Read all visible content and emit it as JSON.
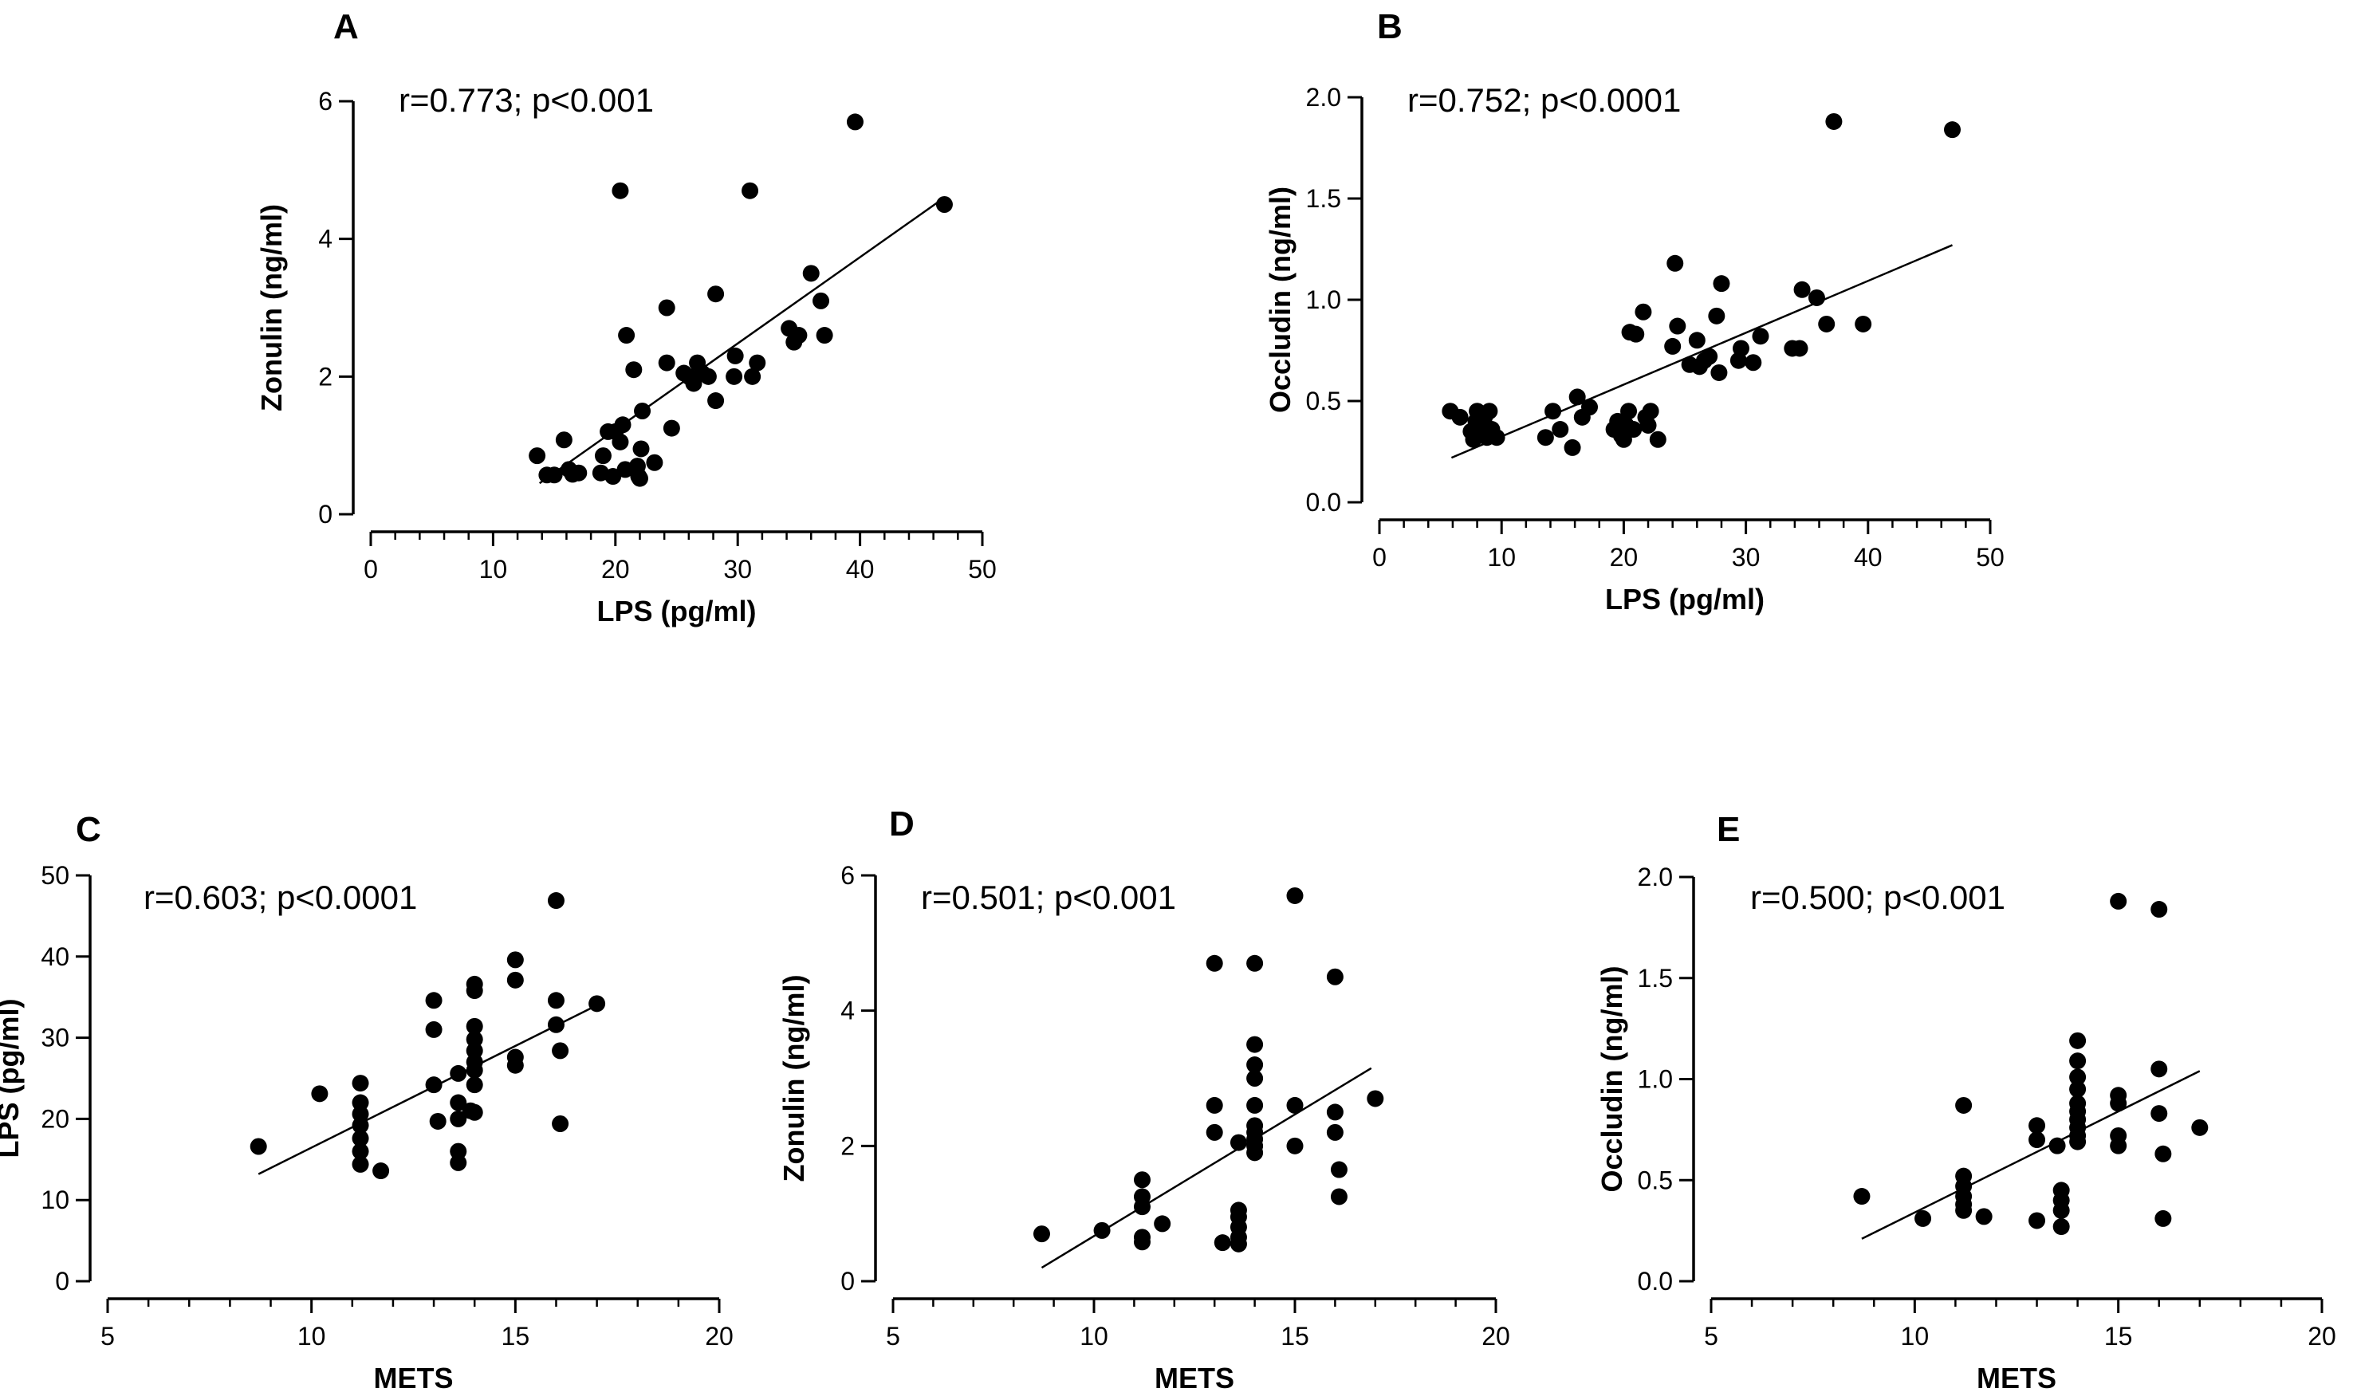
{
  "chart_data": [
    {
      "id": "A",
      "type": "scatter",
      "panel_label": "A",
      "annotation": "r=0.773; p<0.001",
      "xlabel": "LPS (pg/ml)",
      "ylabel": "Zonulin (ng/ml)",
      "xlim": [
        0,
        50
      ],
      "ylim": [
        0,
        6
      ],
      "x_ticks": [
        0,
        10,
        20,
        30,
        40,
        50
      ],
      "y_ticks": [
        0,
        2,
        4,
        6
      ],
      "x_tick_labels": [
        "0",
        "10",
        "20",
        "30",
        "40",
        "50"
      ],
      "y_tick_labels": [
        "0",
        "2",
        "4",
        "6"
      ],
      "fit_line": [
        [
          13.8,
          0.45
        ],
        [
          46.9,
          4.6
        ]
      ],
      "points": [
        [
          13.6,
          0.85
        ],
        [
          14.4,
          0.57
        ],
        [
          15.0,
          0.57
        ],
        [
          15.8,
          1.08
        ],
        [
          16.2,
          0.65
        ],
        [
          16.5,
          0.58
        ],
        [
          17.0,
          0.6
        ],
        [
          18.8,
          0.6
        ],
        [
          19.0,
          0.85
        ],
        [
          19.4,
          1.2
        ],
        [
          19.8,
          0.55
        ],
        [
          20.0,
          1.2
        ],
        [
          20.4,
          1.05
        ],
        [
          20.6,
          1.3
        ],
        [
          20.8,
          0.65
        ],
        [
          20.4,
          4.7
        ],
        [
          20.9,
          2.6
        ],
        [
          21.5,
          2.1
        ],
        [
          21.8,
          0.7
        ],
        [
          21.9,
          0.55
        ],
        [
          22.0,
          0.52
        ],
        [
          22.1,
          0.95
        ],
        [
          22.2,
          1.5
        ],
        [
          23.2,
          0.75
        ],
        [
          24.2,
          2.2
        ],
        [
          24.2,
          3.0
        ],
        [
          24.6,
          1.25
        ],
        [
          25.6,
          2.05
        ],
        [
          26.0,
          2.0
        ],
        [
          26.4,
          1.9
        ],
        [
          26.7,
          2.2
        ],
        [
          27.1,
          2.05
        ],
        [
          27.6,
          2.0
        ],
        [
          28.2,
          1.65
        ],
        [
          28.2,
          3.2
        ],
        [
          29.7,
          2.0
        ],
        [
          29.8,
          2.3
        ],
        [
          31.0,
          4.7
        ],
        [
          31.2,
          2.0
        ],
        [
          31.6,
          2.2
        ],
        [
          34.2,
          2.7
        ],
        [
          34.6,
          2.5
        ],
        [
          35.0,
          2.6
        ],
        [
          36.0,
          3.5
        ],
        [
          36.8,
          3.1
        ],
        [
          37.1,
          2.6
        ],
        [
          39.6,
          5.7
        ],
        [
          46.9,
          4.5
        ]
      ]
    },
    {
      "id": "B",
      "type": "scatter",
      "panel_label": "B",
      "annotation": "r=0.752; p<0.0001",
      "xlabel": "LPS (pg/ml)",
      "ylabel": "Occludin (ng/ml)",
      "xlim": [
        0,
        50
      ],
      "ylim": [
        0,
        2.0
      ],
      "x_ticks": [
        0,
        10,
        20,
        30,
        40,
        50
      ],
      "y_ticks": [
        0,
        0.5,
        1.0,
        1.5,
        2.0
      ],
      "x_tick_labels": [
        "0",
        "10",
        "20",
        "30",
        "40",
        "50"
      ],
      "y_tick_labels": [
        "0.0",
        "0.5",
        "1.0",
        "1.5",
        "2.0"
      ],
      "fit_line": [
        [
          5.9,
          0.22
        ],
        [
          46.9,
          1.27
        ]
      ],
      "points": [
        [
          5.8,
          0.45
        ],
        [
          6.6,
          0.42
        ],
        [
          7.5,
          0.35
        ],
        [
          7.7,
          0.31
        ],
        [
          7.9,
          0.4
        ],
        [
          8.0,
          0.45
        ],
        [
          8.2,
          0.33
        ],
        [
          8.4,
          0.38
        ],
        [
          8.6,
          0.42
        ],
        [
          8.8,
          0.32
        ],
        [
          9.0,
          0.45
        ],
        [
          9.2,
          0.36
        ],
        [
          9.6,
          0.32
        ],
        [
          13.6,
          0.32
        ],
        [
          14.2,
          0.45
        ],
        [
          14.8,
          0.36
        ],
        [
          15.8,
          0.27
        ],
        [
          16.2,
          0.52
        ],
        [
          16.6,
          0.42
        ],
        [
          17.2,
          0.47
        ],
        [
          19.2,
          0.36
        ],
        [
          19.5,
          0.4
        ],
        [
          19.8,
          0.33
        ],
        [
          20.0,
          0.31
        ],
        [
          20.2,
          0.38
        ],
        [
          20.4,
          0.45
        ],
        [
          20.5,
          0.84
        ],
        [
          20.8,
          0.36
        ],
        [
          21.0,
          0.83
        ],
        [
          21.6,
          0.94
        ],
        [
          21.8,
          0.42
        ],
        [
          22.0,
          0.38
        ],
        [
          22.2,
          0.45
        ],
        [
          22.8,
          0.31
        ],
        [
          24.0,
          0.77
        ],
        [
          24.2,
          1.18
        ],
        [
          24.4,
          0.87
        ],
        [
          25.4,
          0.68
        ],
        [
          26.0,
          0.8
        ],
        [
          26.2,
          0.67
        ],
        [
          26.6,
          0.7
        ],
        [
          27.0,
          0.72
        ],
        [
          27.6,
          0.92
        ],
        [
          27.8,
          0.64
        ],
        [
          28.0,
          1.08
        ],
        [
          29.4,
          0.7
        ],
        [
          29.6,
          0.76
        ],
        [
          30.6,
          0.69
        ],
        [
          31.2,
          0.82
        ],
        [
          33.8,
          0.76
        ],
        [
          34.4,
          0.76
        ],
        [
          34.6,
          1.05
        ],
        [
          35.8,
          1.01
        ],
        [
          36.6,
          0.88
        ],
        [
          37.2,
          1.88
        ],
        [
          39.6,
          0.88
        ],
        [
          46.9,
          1.84
        ]
      ]
    },
    {
      "id": "C",
      "type": "scatter",
      "panel_label": "C",
      "annotation": "r=0.603; p<0.0001",
      "xlabel": "METS",
      "ylabel": "LPS (pg/ml)",
      "xlim": [
        5,
        20
      ],
      "ylim": [
        0,
        50
      ],
      "x_ticks": [
        5,
        10,
        15,
        20
      ],
      "y_ticks": [
        0,
        10,
        20,
        30,
        40,
        50
      ],
      "x_tick_labels": [
        "5",
        "10",
        "15",
        "20"
      ],
      "y_tick_labels": [
        "0",
        "10",
        "20",
        "30",
        "40",
        "50"
      ],
      "fit_line": [
        [
          8.7,
          13.2
        ],
        [
          17.0,
          34.0
        ]
      ],
      "points": [
        [
          8.7,
          16.6
        ],
        [
          10.2,
          23.1
        ],
        [
          11.2,
          24.4
        ],
        [
          11.2,
          22.0
        ],
        [
          11.2,
          20.6
        ],
        [
          11.2,
          19.2
        ],
        [
          11.2,
          17.6
        ],
        [
          11.2,
          16.0
        ],
        [
          11.2,
          14.4
        ],
        [
          11.7,
          13.6
        ],
        [
          13.0,
          34.6
        ],
        [
          13.0,
          31.0
        ],
        [
          13.0,
          24.2
        ],
        [
          13.1,
          19.7
        ],
        [
          13.6,
          25.6
        ],
        [
          13.6,
          22.0
        ],
        [
          13.6,
          20.0
        ],
        [
          13.6,
          16.0
        ],
        [
          13.6,
          14.6
        ],
        [
          13.9,
          21.0
        ],
        [
          14.0,
          36.6
        ],
        [
          14.0,
          35.8
        ],
        [
          14.0,
          31.4
        ],
        [
          14.0,
          29.8
        ],
        [
          14.0,
          28.4
        ],
        [
          14.0,
          27.0
        ],
        [
          14.0,
          26.0
        ],
        [
          14.0,
          24.2
        ],
        [
          14.0,
          20.8
        ],
        [
          15.0,
          39.6
        ],
        [
          15.0,
          37.1
        ],
        [
          15.0,
          27.6
        ],
        [
          15.0,
          26.6
        ],
        [
          16.0,
          46.9
        ],
        [
          16.0,
          34.6
        ],
        [
          16.0,
          31.6
        ],
        [
          16.1,
          28.4
        ],
        [
          16.1,
          19.4
        ],
        [
          17.0,
          34.2
        ]
      ]
    },
    {
      "id": "D",
      "type": "scatter",
      "panel_label": "D",
      "annotation": "r=0.501; p<0.001",
      "xlabel": "METS",
      "ylabel": "Zonulin (ng/ml)",
      "xlim": [
        5,
        20
      ],
      "ylim": [
        0,
        6
      ],
      "x_ticks": [
        5,
        10,
        15,
        20
      ],
      "y_ticks": [
        0,
        2,
        4,
        6
      ],
      "x_tick_labels": [
        "5",
        "10",
        "15",
        "20"
      ],
      "y_tick_labels": [
        "0",
        "2",
        "4",
        "6"
      ],
      "fit_line": [
        [
          8.7,
          0.2
        ],
        [
          16.9,
          3.15
        ]
      ],
      "points": [
        [
          8.7,
          0.7
        ],
        [
          10.2,
          0.75
        ],
        [
          11.2,
          1.5
        ],
        [
          11.2,
          1.25
        ],
        [
          11.2,
          1.1
        ],
        [
          11.2,
          0.65
        ],
        [
          11.2,
          0.58
        ],
        [
          11.7,
          0.85
        ],
        [
          13.0,
          4.7
        ],
        [
          13.0,
          2.6
        ],
        [
          13.0,
          2.2
        ],
        [
          13.2,
          0.57
        ],
        [
          13.6,
          2.05
        ],
        [
          13.6,
          1.05
        ],
        [
          13.6,
          0.95
        ],
        [
          13.6,
          0.8
        ],
        [
          13.6,
          0.65
        ],
        [
          13.6,
          0.55
        ],
        [
          14.0,
          4.7
        ],
        [
          14.0,
          3.5
        ],
        [
          14.0,
          3.2
        ],
        [
          14.0,
          3.0
        ],
        [
          14.0,
          2.6
        ],
        [
          14.0,
          2.3
        ],
        [
          14.0,
          2.2
        ],
        [
          14.0,
          2.1
        ],
        [
          14.0,
          2.0
        ],
        [
          14.0,
          1.9
        ],
        [
          15.0,
          5.7
        ],
        [
          15.0,
          2.6
        ],
        [
          15.0,
          2.0
        ],
        [
          16.0,
          4.5
        ],
        [
          16.0,
          2.5
        ],
        [
          16.0,
          2.2
        ],
        [
          16.1,
          1.65
        ],
        [
          16.1,
          1.25
        ],
        [
          17.0,
          2.7
        ]
      ]
    },
    {
      "id": "E",
      "type": "scatter",
      "panel_label": "E",
      "annotation": "r=0.500; p<0.001",
      "xlabel": "METS",
      "ylabel": "Occludin (ng/ml)",
      "xlim": [
        5,
        20
      ],
      "ylim": [
        0,
        2.0
      ],
      "x_ticks": [
        5,
        10,
        15,
        20
      ],
      "y_ticks": [
        0,
        0.5,
        1.0,
        1.5,
        2.0
      ],
      "x_tick_labels": [
        "5",
        "10",
        "15",
        "20"
      ],
      "y_tick_labels": [
        "0.0",
        "0.5",
        "1.0",
        "1.5",
        "2.0"
      ],
      "fit_line": [
        [
          8.7,
          0.21
        ],
        [
          17.0,
          1.04
        ]
      ],
      "points": [
        [
          8.7,
          0.42
        ],
        [
          10.2,
          0.31
        ],
        [
          11.2,
          0.87
        ],
        [
          11.2,
          0.52
        ],
        [
          11.2,
          0.47
        ],
        [
          11.2,
          0.42
        ],
        [
          11.2,
          0.38
        ],
        [
          11.2,
          0.35
        ],
        [
          11.7,
          0.32
        ],
        [
          13.0,
          0.77
        ],
        [
          13.0,
          0.7
        ],
        [
          13.0,
          0.3
        ],
        [
          13.5,
          0.67
        ],
        [
          13.6,
          0.45
        ],
        [
          13.6,
          0.4
        ],
        [
          13.6,
          0.35
        ],
        [
          13.6,
          0.27
        ],
        [
          14.0,
          1.19
        ],
        [
          14.0,
          1.09
        ],
        [
          14.0,
          1.01
        ],
        [
          14.0,
          0.95
        ],
        [
          14.0,
          0.88
        ],
        [
          14.0,
          0.84
        ],
        [
          14.0,
          0.8
        ],
        [
          14.0,
          0.76
        ],
        [
          14.0,
          0.72
        ],
        [
          14.0,
          0.69
        ],
        [
          15.0,
          1.88
        ],
        [
          15.0,
          0.92
        ],
        [
          15.0,
          0.88
        ],
        [
          15.0,
          0.72
        ],
        [
          15.0,
          0.67
        ],
        [
          16.0,
          1.84
        ],
        [
          16.0,
          1.05
        ],
        [
          16.0,
          0.83
        ],
        [
          16.1,
          0.63
        ],
        [
          16.1,
          0.31
        ],
        [
          17.0,
          0.76
        ]
      ]
    }
  ]
}
